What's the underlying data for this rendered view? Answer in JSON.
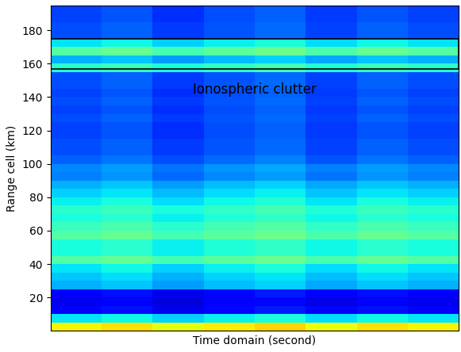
{
  "chart_data": {
    "type": "heatmap",
    "x_label": "Time domain (second)",
    "y_label": "Range cell (km)",
    "annotation": "Ionospheric clutter",
    "clutter_range": [
      157,
      175
    ],
    "time_edges": [
      0,
      1,
      2,
      3,
      4,
      5,
      6,
      7,
      8
    ],
    "range_edges": [
      0,
      5,
      10,
      15,
      20,
      25,
      30,
      35,
      40,
      45,
      50,
      55,
      60,
      65,
      70,
      75,
      80,
      85,
      90,
      95,
      100,
      105,
      110,
      115,
      120,
      125,
      130,
      135,
      140,
      145,
      150,
      155,
      160,
      165,
      170,
      175,
      180,
      185,
      190,
      195
    ],
    "cells": [
      [
        0.65,
        0.67,
        0.63,
        0.66,
        0.68,
        0.64,
        0.67,
        0.65
      ],
      [
        0.35,
        0.37,
        0.33,
        0.36,
        0.38,
        0.34,
        0.37,
        0.35
      ],
      [
        0.12,
        0.14,
        0.1,
        0.13,
        0.15,
        0.11,
        0.14,
        0.12
      ],
      [
        0.1,
        0.12,
        0.08,
        0.11,
        0.13,
        0.09,
        0.12,
        0.1
      ],
      [
        0.12,
        0.14,
        0.1,
        0.13,
        0.15,
        0.11,
        0.14,
        0.12
      ],
      [
        0.3,
        0.32,
        0.28,
        0.31,
        0.33,
        0.29,
        0.32,
        0.3
      ],
      [
        0.32,
        0.34,
        0.3,
        0.33,
        0.35,
        0.31,
        0.34,
        0.32
      ],
      [
        0.35,
        0.37,
        0.33,
        0.36,
        0.38,
        0.34,
        0.37,
        0.35
      ],
      [
        0.45,
        0.47,
        0.43,
        0.46,
        0.48,
        0.44,
        0.47,
        0.45
      ],
      [
        0.38,
        0.4,
        0.36,
        0.39,
        0.41,
        0.37,
        0.4,
        0.38
      ],
      [
        0.38,
        0.4,
        0.36,
        0.39,
        0.41,
        0.37,
        0.4,
        0.38
      ],
      [
        0.45,
        0.47,
        0.43,
        0.46,
        0.48,
        0.44,
        0.47,
        0.45
      ],
      [
        0.42,
        0.44,
        0.4,
        0.43,
        0.45,
        0.41,
        0.44,
        0.42
      ],
      [
        0.38,
        0.4,
        0.36,
        0.39,
        0.41,
        0.37,
        0.4,
        0.38
      ],
      [
        0.4,
        0.42,
        0.38,
        0.41,
        0.43,
        0.39,
        0.42,
        0.4
      ],
      [
        0.36,
        0.38,
        0.34,
        0.37,
        0.39,
        0.35,
        0.38,
        0.36
      ],
      [
        0.33,
        0.35,
        0.31,
        0.34,
        0.36,
        0.32,
        0.35,
        0.33
      ],
      [
        0.3,
        0.32,
        0.28,
        0.31,
        0.33,
        0.29,
        0.32,
        0.3
      ],
      [
        0.25,
        0.27,
        0.23,
        0.26,
        0.28,
        0.24,
        0.27,
        0.25
      ],
      [
        0.26,
        0.28,
        0.24,
        0.27,
        0.29,
        0.25,
        0.28,
        0.26
      ],
      [
        0.22,
        0.24,
        0.2,
        0.23,
        0.25,
        0.21,
        0.24,
        0.22
      ],
      [
        0.2,
        0.22,
        0.18,
        0.21,
        0.23,
        0.19,
        0.22,
        0.2
      ],
      [
        0.2,
        0.22,
        0.18,
        0.21,
        0.23,
        0.19,
        0.22,
        0.2
      ],
      [
        0.19,
        0.21,
        0.17,
        0.2,
        0.22,
        0.18,
        0.21,
        0.19
      ],
      [
        0.19,
        0.21,
        0.17,
        0.2,
        0.22,
        0.18,
        0.21,
        0.19
      ],
      [
        0.2,
        0.22,
        0.18,
        0.21,
        0.23,
        0.19,
        0.22,
        0.2
      ],
      [
        0.19,
        0.21,
        0.17,
        0.2,
        0.22,
        0.18,
        0.21,
        0.19
      ],
      [
        0.2,
        0.22,
        0.18,
        0.21,
        0.23,
        0.19,
        0.22,
        0.2
      ],
      [
        0.19,
        0.21,
        0.17,
        0.2,
        0.22,
        0.18,
        0.21,
        0.19
      ],
      [
        0.2,
        0.22,
        0.18,
        0.21,
        0.23,
        0.19,
        0.22,
        0.2
      ],
      [
        0.2,
        0.22,
        0.18,
        0.21,
        0.23,
        0.19,
        0.22,
        0.2
      ],
      [
        0.4,
        0.42,
        0.38,
        0.41,
        0.43,
        0.39,
        0.42,
        0.4
      ],
      [
        0.3,
        0.32,
        0.28,
        0.31,
        0.33,
        0.29,
        0.32,
        0.3
      ],
      [
        0.45,
        0.47,
        0.43,
        0.46,
        0.48,
        0.44,
        0.47,
        0.45
      ],
      [
        0.35,
        0.37,
        0.33,
        0.36,
        0.38,
        0.34,
        0.37,
        0.35
      ],
      [
        0.2,
        0.22,
        0.18,
        0.21,
        0.23,
        0.19,
        0.22,
        0.2
      ],
      [
        0.2,
        0.22,
        0.18,
        0.21,
        0.23,
        0.19,
        0.22,
        0.2
      ],
      [
        0.19,
        0.21,
        0.17,
        0.2,
        0.22,
        0.18,
        0.21,
        0.19
      ],
      [
        0.19,
        0.21,
        0.17,
        0.2,
        0.22,
        0.18,
        0.21,
        0.19
      ]
    ],
    "zlim": [
      0,
      1
    ],
    "xlim": [
      0,
      8
    ],
    "ylim": [
      0,
      195
    ],
    "yticks": [
      20,
      40,
      60,
      80,
      100,
      120,
      140,
      160,
      180
    ],
    "tick_labels": "y",
    "grid": false
  }
}
